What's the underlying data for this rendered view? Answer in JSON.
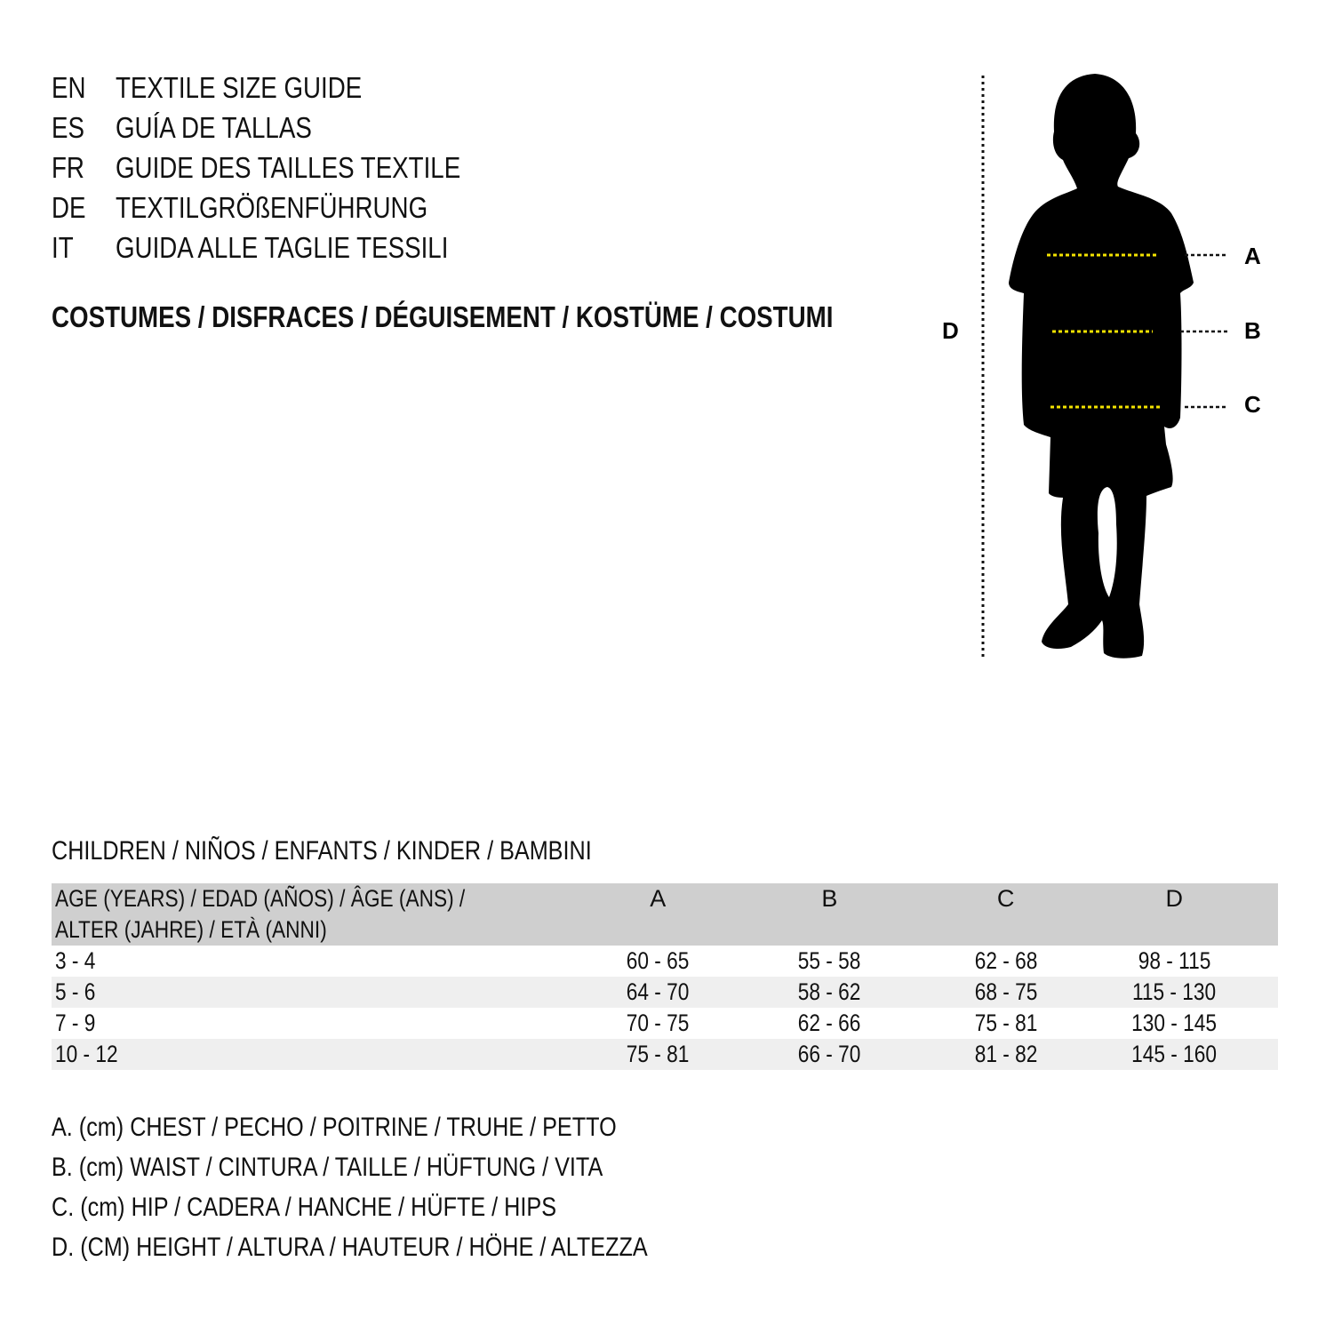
{
  "titles": [
    {
      "code": "EN",
      "text": "TEXTILE SIZE GUIDE"
    },
    {
      "code": "ES",
      "text": "GUÍA DE TALLAS"
    },
    {
      "code": "FR",
      "text": "GUIDE DES TAILLES TEXTILE"
    },
    {
      "code": "DE",
      "text": "TEXTILGRÖßENFÜHRUNG"
    },
    {
      "code": "IT",
      "text": "GUIDA ALLE TAGLIE TESSILI"
    }
  ],
  "category": "COSTUMES / DISFRACES / DÉGUISEMENT / KOSTÜME / COSTUMI",
  "figure": {
    "labels": {
      "a": "A",
      "b": "B",
      "c": "C",
      "d": "D"
    },
    "silhouette_color": "#000000",
    "measure_line_color": "#f2e200"
  },
  "section_title": "CHILDREN / NIÑOS / ENFANTS / KINDER / BAMBINI",
  "table": {
    "header": {
      "age_line1": "AGE (YEARS) / EDAD (AÑOS) / ÂGE (ANS) /",
      "age_line2": "ALTER (JAHRE) / ETÀ (ANNI)",
      "columns": [
        "A",
        "B",
        "C",
        "D"
      ]
    },
    "rows": [
      {
        "age": "3 - 4",
        "values": [
          "60 - 65",
          "55 - 58",
          "62 - 68",
          "98 - 115"
        ]
      },
      {
        "age": "5 - 6",
        "values": [
          "64 - 70",
          "58 - 62",
          "68 - 75",
          "115 - 130"
        ]
      },
      {
        "age": "7 - 9",
        "values": [
          "70 - 75",
          "62 - 66",
          "75 - 81",
          "130 - 145"
        ]
      },
      {
        "age": "10 - 12",
        "values": [
          "75 - 81",
          "66 - 70",
          "81 - 82",
          "145 - 160"
        ]
      }
    ],
    "header_bg": "#cfcfcf",
    "stripe_bg": "#efefef"
  },
  "legend": [
    "A. (cm) CHEST / PECHO / POITRINE / TRUHE / PETTO",
    "B. (cm) WAIST / CINTURA / TAILLE / HÜFTUNG / VITA",
    "C. (cm) HIP / CADERA / HANCHE / HÜFTE / HIPS",
    "D. (CM) HEIGHT / ALTURA / HAUTEUR / HÖHE / ALTEZZA"
  ]
}
